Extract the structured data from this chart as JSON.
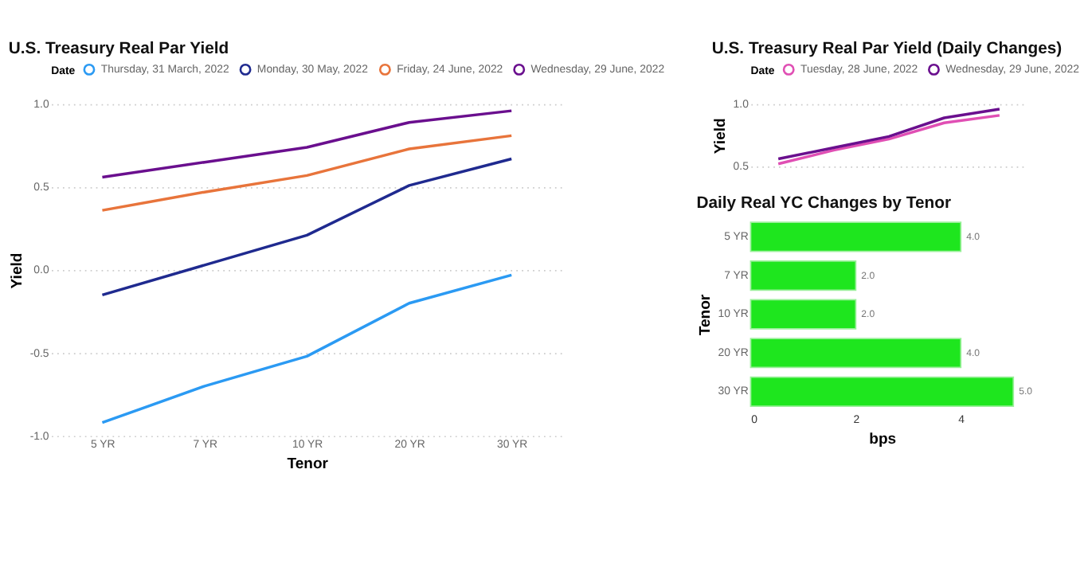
{
  "chart_data": [
    {
      "type": "line",
      "title": "U.S. Treasury Real Par Yield",
      "xlabel": "Tenor",
      "ylabel": "Yield",
      "legend_title": "Date",
      "legend": "top",
      "grid": "y",
      "categories": [
        "5 YR",
        "7 YR",
        "10 YR",
        "20 YR",
        "30 YR"
      ],
      "ylim": [
        -1.0,
        1.0
      ],
      "yticks": [
        {
          "value": -1,
          "label": "-1.0"
        },
        {
          "value": -0.5,
          "label": "-0.5"
        },
        {
          "value": 0,
          "label": "0.0"
        },
        {
          "value": 0.5,
          "label": "0.5"
        },
        {
          "value": 1,
          "label": "1.0"
        }
      ],
      "series": [
        {
          "name": "Thursday, 31 March, 2022",
          "color": "#2b9af3",
          "values": [
            -0.92,
            -0.7,
            -0.52,
            -0.2,
            -0.03
          ]
        },
        {
          "name": "Monday, 30 May, 2022",
          "color": "#1f2a8f",
          "values": [
            -0.15,
            0.03,
            0.21,
            0.51,
            0.67
          ]
        },
        {
          "name": "Friday, 24 June, 2022",
          "color": "#e8743b",
          "values": [
            0.36,
            0.47,
            0.57,
            0.73,
            0.81
          ]
        },
        {
          "name": "Wednesday, 29 June, 2022",
          "color": "#6a0f8e",
          "values": [
            0.56,
            0.65,
            0.74,
            0.89,
            0.96
          ]
        }
      ]
    },
    {
      "type": "line",
      "title": "U.S. Treasury Real Par Yield (Daily Changes)",
      "ylabel": "Yield",
      "legend_title": "Date",
      "legend": "top",
      "grid": "y",
      "tick_labels": "y",
      "categories": [
        null,
        null,
        null,
        null,
        null
      ],
      "ylim": [
        0.5,
        1.0
      ],
      "yticks": [
        {
          "value": 0.5,
          "label": "0.5"
        },
        {
          "value": 1,
          "label": "1.0"
        }
      ],
      "series": [
        {
          "name": "Tuesday, 28 June, 2022",
          "color": "#e04fb4",
          "values": [
            0.52,
            0.63,
            0.72,
            0.85,
            0.91
          ]
        },
        {
          "name": "Wednesday, 29 June, 2022",
          "color": "#6a0f8e",
          "values": [
            0.56,
            0.65,
            0.74,
            0.89,
            0.96
          ]
        }
      ]
    },
    {
      "type": "bar",
      "orientation": "horizontal",
      "title": "Daily Real YC Changes by Tenor",
      "xlabel": "bps",
      "ylabel": "Tenor",
      "categories": [
        "5 YR",
        "7 YR",
        "10 YR",
        "20 YR",
        "30 YR"
      ],
      "xlim": [
        0,
        5
      ],
      "xticks": [
        0,
        2,
        4
      ],
      "series": [
        {
          "color": "#1ee61e",
          "values": [
            4,
            2,
            2,
            4,
            5
          ],
          "value_labels": [
            "4.0",
            "2.0",
            "2.0",
            "4.0",
            "5.0"
          ]
        }
      ]
    }
  ]
}
